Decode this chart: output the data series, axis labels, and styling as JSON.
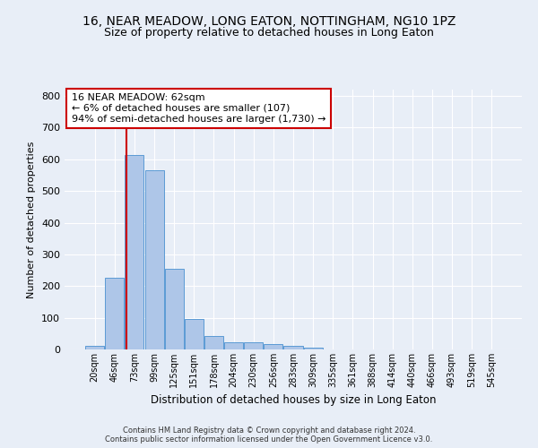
{
  "title": "16, NEAR MEADOW, LONG EATON, NOTTINGHAM, NG10 1PZ",
  "subtitle": "Size of property relative to detached houses in Long Eaton",
  "xlabel": "Distribution of detached houses by size in Long Eaton",
  "ylabel": "Number of detached properties",
  "footer_line1": "Contains HM Land Registry data © Crown copyright and database right 2024.",
  "footer_line2": "Contains public sector information licensed under the Open Government Licence v3.0.",
  "bin_labels": [
    "20sqm",
    "46sqm",
    "73sqm",
    "99sqm",
    "125sqm",
    "151sqm",
    "178sqm",
    "204sqm",
    "230sqm",
    "256sqm",
    "283sqm",
    "309sqm",
    "335sqm",
    "361sqm",
    "388sqm",
    "414sqm",
    "440sqm",
    "466sqm",
    "493sqm",
    "519sqm",
    "545sqm"
  ],
  "bar_values": [
    10,
    227,
    613,
    566,
    255,
    96,
    43,
    22,
    22,
    18,
    10,
    7,
    0,
    0,
    0,
    0,
    0,
    0,
    0,
    0,
    0
  ],
  "bar_color": "#aec6e8",
  "bar_edgecolor": "#5b9bd5",
  "annotation_box_text": "16 NEAR MEADOW: 62sqm\n← 6% of detached houses are smaller (107)\n94% of semi-detached houses are larger (1,730) →",
  "vline_color": "#cc0000",
  "annotation_box_facecolor": "#ffffff",
  "annotation_box_edgecolor": "#cc0000",
  "ylim": [
    0,
    820
  ],
  "yticks": [
    0,
    100,
    200,
    300,
    400,
    500,
    600,
    700,
    800
  ],
  "background_color": "#e8eef7",
  "axes_background": "#e8eef7",
  "grid_color": "#ffffff",
  "title_fontsize": 10,
  "subtitle_fontsize": 9,
  "annotation_fontsize": 8
}
